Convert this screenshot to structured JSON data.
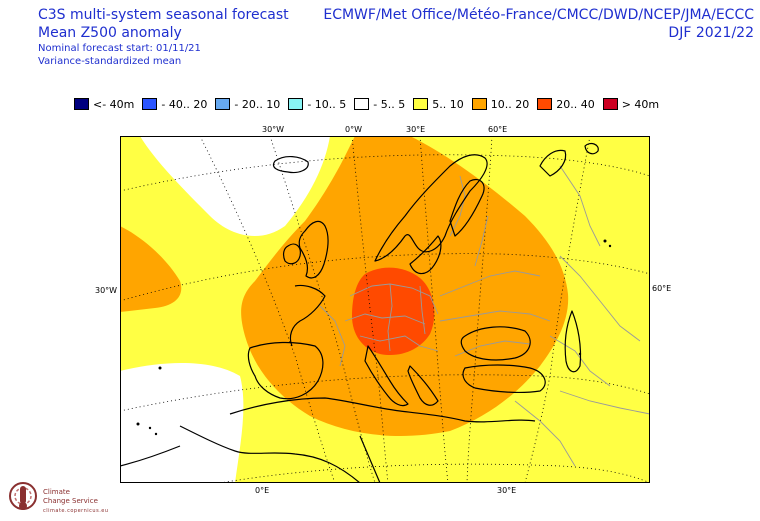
{
  "header": {
    "title": "C3S multi-system seasonal forecast",
    "subtitle": "Mean Z500 anomaly",
    "start": "Nominal forecast start: 01/11/21",
    "method": "Variance-standardized mean",
    "systems": "ECMWF/Met Office/Météo-France/CMCC/DWD/NCEP/JMA/ECCC",
    "season": "DJF 2021/22"
  },
  "legend": [
    {
      "label": "<- 40m",
      "color": "#00007f"
    },
    {
      "label": "- 40.. 20",
      "color": "#2b55ff"
    },
    {
      "label": "- 20.. 10",
      "color": "#66a8f0"
    },
    {
      "label": "- 10.. 5",
      "color": "#88f4f4"
    },
    {
      "label": "- 5.. 5",
      "color": "#ffffff"
    },
    {
      "label": "5.. 10",
      "color": "#ffff44"
    },
    {
      "label": "10.. 20",
      "color": "#ffa500"
    },
    {
      "label": "20.. 40",
      "color": "#ff4a00"
    },
    {
      "label": "> 40m",
      "color": "#cc0022"
    }
  ],
  "map_labels": {
    "top": [
      "30°W",
      "0°W",
      "30°E",
      "60°E"
    ],
    "left": "30°W",
    "right": "60°E",
    "bottom": [
      "0°E",
      "30°E"
    ]
  },
  "logo": {
    "name_line1": "Climate",
    "name_line2": "Change Service",
    "sub": "climate.copernicus.eu"
  }
}
